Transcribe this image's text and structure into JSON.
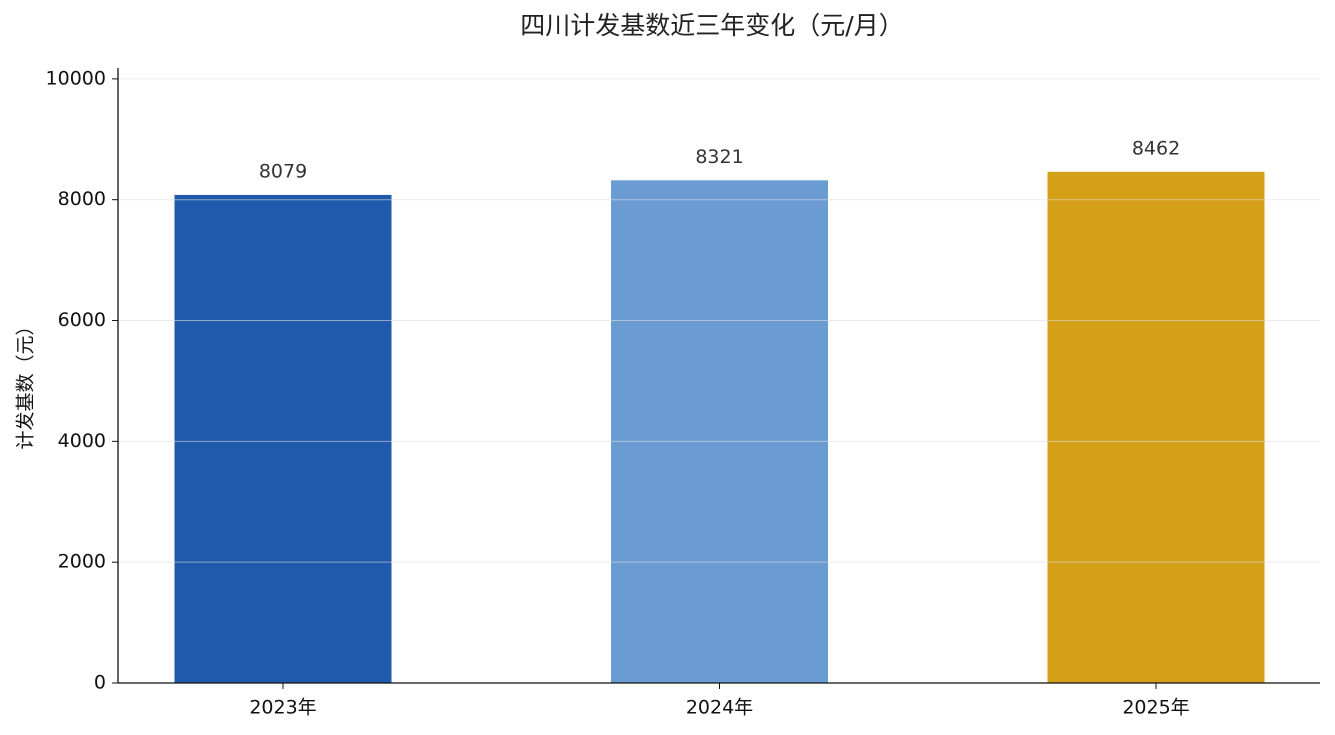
{
  "chart_data": {
    "type": "bar",
    "title": "四川计发基数近三年变化（元/月）",
    "y_label": "计发基数（元）",
    "categories": [
      "2023年",
      "2024年",
      "2025年"
    ],
    "values": [
      8079,
      8321,
      8462
    ],
    "colors": [
      "#1f5aad",
      "#6b9bd3",
      "#d4a017"
    ],
    "ylim": [
      0,
      10180
    ],
    "yticks": [
      0,
      2000,
      4000,
      6000,
      8000,
      10000
    ],
    "grid": true
  }
}
